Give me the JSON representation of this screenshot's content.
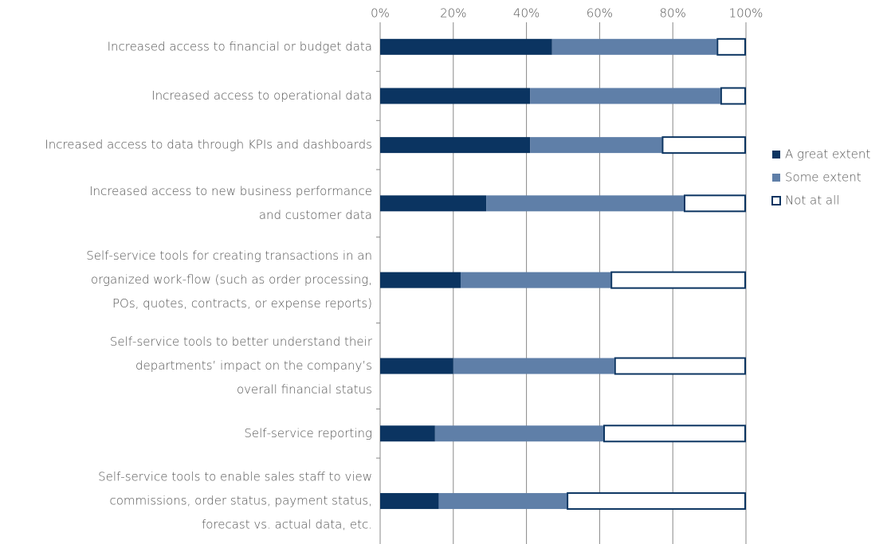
{
  "chart_data": {
    "type": "stacked-bar-horizontal",
    "categories": [
      [
        "Increased access to financial or budget data"
      ],
      [
        "Increased access to operational data"
      ],
      [
        "Increased access to data through KPIs and dashboards"
      ],
      [
        "Increased access to new business performance",
        "and customer data"
      ],
      [
        "Self-service tools for creating transactions in an",
        "organized work-flow (such as order processing,",
        "POs, quotes, contracts, or expense reports)"
      ],
      [
        "Self-service tools to better understand their",
        "departments’ impact on the company’s",
        "overall financial status"
      ],
      [
        "Self-service reporting"
      ],
      [
        "Self-service tools to enable sales staff to view",
        "commissions, order status, payment status,",
        "forecast vs. actual data, etc."
      ]
    ],
    "series": [
      {
        "name": "A great extent",
        "color": "#0b3461",
        "values": [
          47,
          41,
          41,
          29,
          22,
          20,
          15,
          16
        ]
      },
      {
        "name": "Some extent",
        "color": "#5f7fa8",
        "values": [
          45,
          52,
          36,
          54,
          41,
          44,
          46,
          35
        ]
      },
      {
        "name": "Not at all",
        "color": "#ffffff",
        "values": [
          8,
          7,
          23,
          17,
          37,
          36,
          39,
          49
        ]
      }
    ],
    "xlim": [
      0,
      100
    ],
    "xticks": [
      {
        "value": 0,
        "label": "0%"
      },
      {
        "value": 20,
        "label": "20%"
      },
      {
        "value": 40,
        "label": "40%"
      },
      {
        "value": 60,
        "label": "60%"
      },
      {
        "value": 80,
        "label": "80%"
      },
      {
        "value": 100,
        "label": "100%"
      }
    ],
    "grid": true,
    "legend": "right"
  }
}
